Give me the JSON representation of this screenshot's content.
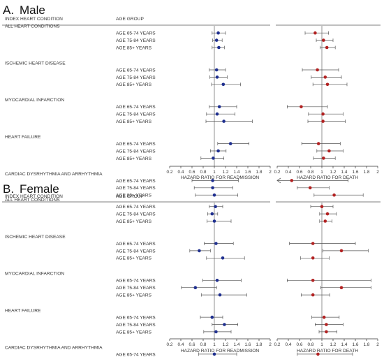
{
  "figure": {
    "panels": [
      {
        "letter": "A.",
        "title": "Male"
      },
      {
        "letter": "B.",
        "title": "Female"
      }
    ],
    "col_condition_header": "INDEX HEART CONDITION",
    "col_age_header": "AGE GROUP",
    "readmission_axis_label": "HAZARD RATIO FOR READMISSION",
    "death_axis_label": "HAZARD RATIO FOR DEATH",
    "ticks": [
      "0.2",
      "0.4",
      "0.6",
      "0.8",
      "1",
      "1.2",
      "1.4",
      "1.6",
      "1.8",
      "2"
    ],
    "conditions": [
      "ALL HEART CONDITIONS",
      "ISCHEMIC HEART DISEASE",
      "MYOCARDIAL INFARCTION",
      "HEART FAILURE",
      "CARDIAC DYSRHYTHMIA AND ARRHYTHMIA"
    ],
    "age_groups": [
      "AGE 65-74 YEARS",
      "AGE 75-84 YEARS",
      "AGE 85+ YEARS"
    ],
    "colors": {
      "readmission": "#1f2f8f",
      "death": "#b22222",
      "line": "#444444"
    }
  },
  "chart_data": [
    {
      "type": "scatter",
      "panel": "Male",
      "outcome": "readmission",
      "xlabel": "HAZARD RATIO FOR READMISSION",
      "xlim": [
        0.2,
        2
      ],
      "reference_line": 1,
      "rows": [
        {
          "condition": "ALL HEART CONDITIONS",
          "age": "AGE 65-74 YEARS",
          "hr": 1.07,
          "lo": 0.96,
          "hi": 1.2
        },
        {
          "condition": "ALL HEART CONDITIONS",
          "age": "AGE 75-84 YEARS",
          "hr": 1.04,
          "lo": 0.97,
          "hi": 1.14
        },
        {
          "condition": "ALL HEART CONDITIONS",
          "age": "AGE 85+ YEARS",
          "hr": 1.08,
          "lo": 0.96,
          "hi": 1.18
        },
        {
          "condition": "ISCHEMIC HEART DISEASE",
          "age": "AGE 65-74 YEARS",
          "hr": 1.04,
          "lo": 0.91,
          "hi": 1.2
        },
        {
          "condition": "ISCHEMIC HEART DISEASE",
          "age": "AGE 75-84 YEARS",
          "hr": 1.05,
          "lo": 0.92,
          "hi": 1.23
        },
        {
          "condition": "ISCHEMIC HEART DISEASE",
          "age": "AGE 85+ YEARS",
          "hr": 1.16,
          "lo": 0.95,
          "hi": 1.47
        },
        {
          "condition": "MYOCARDIAL INFARCTION",
          "age": "AGE 65-74 YEARS",
          "hr": 1.09,
          "lo": 0.91,
          "hi": 1.4
        },
        {
          "condition": "MYOCARDIAL INFARCTION",
          "age": "AGE 75-84 YEARS",
          "hr": 1.05,
          "lo": 0.86,
          "hi": 1.37
        },
        {
          "condition": "MYOCARDIAL INFARCTION",
          "age": "AGE 85+ YEARS",
          "hr": 1.17,
          "lo": 0.85,
          "hi": 1.68
        },
        {
          "condition": "HEART FAILURE",
          "age": "AGE 65-74 YEARS",
          "hr": 1.29,
          "lo": 1.06,
          "hi": 1.62
        },
        {
          "condition": "HEART FAILURE",
          "age": "AGE 75-84 YEARS",
          "hr": 1.07,
          "lo": 0.93,
          "hi": 1.21
        },
        {
          "condition": "HEART FAILURE",
          "age": "AGE 85+ YEARS",
          "hr": 0.98,
          "lo": 0.76,
          "hi": 1.17
        },
        {
          "condition": "CARDIAC DYSRHYTHMIA AND ARRHYTHMIA",
          "age": "AGE 65-74 YEARS",
          "hr": 0.97,
          "lo": 0.6,
          "hi": 1.43
        },
        {
          "condition": "CARDIAC DYSRHYTHMIA AND ARRHYTHMIA",
          "age": "AGE 75-84 YEARS",
          "hr": 0.97,
          "lo": 0.64,
          "hi": 1.33
        },
        {
          "condition": "CARDIAC DYSRHYTHMIA AND ARRHYTHMIA",
          "age": "AGE 85+ YEARS",
          "hr": 1.0,
          "lo": 0.66,
          "hi": 1.42
        }
      ]
    },
    {
      "type": "scatter",
      "panel": "Male",
      "outcome": "death",
      "xlabel": "HAZARD RATIO FOR DEATH",
      "xlim": [
        0.2,
        2
      ],
      "reference_line": 1,
      "rows": [
        {
          "condition": "ALL HEART CONDITIONS",
          "age": "AGE 65-74 YEARS",
          "hr": 0.88,
          "lo": 0.7,
          "hi": 1.12
        },
        {
          "condition": "ALL HEART CONDITIONS",
          "age": "AGE 75-84 YEARS",
          "hr": 1.03,
          "lo": 0.9,
          "hi": 1.2
        },
        {
          "condition": "ALL HEART CONDITIONS",
          "age": "AGE 85+ YEARS",
          "hr": 1.09,
          "lo": 0.97,
          "hi": 1.24
        },
        {
          "condition": "ISCHEMIC HEART DISEASE",
          "age": "AGE 65-74 YEARS",
          "hr": 0.92,
          "lo": 0.65,
          "hi": 1.3
        },
        {
          "condition": "ISCHEMIC HEART DISEASE",
          "age": "AGE 75-84 YEARS",
          "hr": 1.06,
          "lo": 0.81,
          "hi": 1.35
        },
        {
          "condition": "ISCHEMIC HEART DISEASE",
          "age": "AGE 85+ YEARS",
          "hr": 1.1,
          "lo": 0.84,
          "hi": 1.45
        },
        {
          "condition": "MYOCARDIAL INFARCTION",
          "age": "AGE 65-74 YEARS",
          "hr": 0.63,
          "lo": 0.38,
          "hi": 1.1
        },
        {
          "condition": "MYOCARDIAL INFARCTION",
          "age": "AGE 75-84 YEARS",
          "hr": 1.02,
          "lo": 0.76,
          "hi": 1.38
        },
        {
          "condition": "MYOCARDIAL INFARCTION",
          "age": "AGE 85+ YEARS",
          "hr": 1.02,
          "lo": 0.75,
          "hi": 1.42
        },
        {
          "condition": "HEART FAILURE",
          "age": "AGE 65-74 YEARS",
          "hr": 0.94,
          "lo": 0.64,
          "hi": 1.33
        },
        {
          "condition": "HEART FAILURE",
          "age": "AGE 75-84 YEARS",
          "hr": 1.13,
          "lo": 0.91,
          "hi": 1.38
        },
        {
          "condition": "HEART FAILURE",
          "age": "AGE 85+ YEARS",
          "hr": 1.03,
          "lo": 0.85,
          "hi": 1.24
        },
        {
          "condition": "CARDIAC DYSRHYTHMIA AND ARRHYTHMIA",
          "age": "AGE 65-74 YEARS",
          "hr": 0.46,
          "lo": 0.2,
          "hi": 1.47,
          "lo_truncated": true
        },
        {
          "condition": "CARDIAC DYSRHYTHMIA AND ARRHYTHMIA",
          "age": "AGE 75-84 YEARS",
          "hr": 0.79,
          "lo": 0.56,
          "hi": 1.13
        },
        {
          "condition": "CARDIAC DYSRHYTHMIA AND ARRHYTHMIA",
          "age": "AGE 85+ YEARS",
          "hr": 1.22,
          "lo": 0.86,
          "hi": 1.74
        }
      ]
    },
    {
      "type": "scatter",
      "panel": "Female",
      "outcome": "readmission",
      "xlabel": "HAZARD RATIO FOR READMISSION",
      "xlim": [
        0.2,
        2
      ],
      "reference_line": 1,
      "rows": [
        {
          "condition": "ALL HEART CONDITIONS",
          "age": "AGE 65-74 YEARS",
          "hr": 1.02,
          "lo": 0.91,
          "hi": 1.15
        },
        {
          "condition": "ALL HEART CONDITIONS",
          "age": "AGE 75-84 YEARS",
          "hr": 0.96,
          "lo": 0.88,
          "hi": 1.06
        },
        {
          "condition": "ALL HEART CONDITIONS",
          "age": "AGE 85+ YEARS",
          "hr": 1.0,
          "lo": 0.87,
          "hi": 1.3
        },
        {
          "condition": "ISCHEMIC HEART DISEASE",
          "age": "AGE 65-74 YEARS",
          "hr": 1.03,
          "lo": 0.82,
          "hi": 1.34
        },
        {
          "condition": "ISCHEMIC HEART DISEASE",
          "age": "AGE 75-84 YEARS",
          "hr": 0.73,
          "lo": 0.56,
          "hi": 0.93
        },
        {
          "condition": "ISCHEMIC HEART DISEASE",
          "age": "AGE 85+ YEARS",
          "hr": 1.15,
          "lo": 0.86,
          "hi": 1.54
        },
        {
          "condition": "MYOCARDIAL INFARCTION",
          "age": "AGE 65-74 YEARS",
          "hr": 1.05,
          "lo": 0.79,
          "hi": 1.48
        },
        {
          "condition": "MYOCARDIAL INFARCTION",
          "age": "AGE 75-84 YEARS",
          "hr": 0.66,
          "lo": 0.41,
          "hi": 1.04
        },
        {
          "condition": "MYOCARDIAL INFARCTION",
          "age": "AGE 85+ YEARS",
          "hr": 1.1,
          "lo": 0.77,
          "hi": 1.58
        },
        {
          "condition": "HEART FAILURE",
          "age": "AGE 65-74 YEARS",
          "hr": 0.96,
          "lo": 0.75,
          "hi": 1.15
        },
        {
          "condition": "HEART FAILURE",
          "age": "AGE 75-84 YEARS",
          "hr": 1.18,
          "lo": 0.96,
          "hi": 1.42
        },
        {
          "condition": "HEART FAILURE",
          "age": "AGE 85+ YEARS",
          "hr": 1.03,
          "lo": 0.81,
          "hi": 1.3
        },
        {
          "condition": "CARDIAC DYSRHYTHMIA AND ARRHYTHMIA",
          "age": "AGE 65-74 YEARS",
          "hr": 1.0,
          "lo": 0.72,
          "hi": 1.4
        },
        {
          "condition": "CARDIAC DYSRHYTHMIA AND ARRHYTHMIA",
          "age": "AGE 75-84 YEARS",
          "hr": 0.66,
          "lo": 0.37,
          "hi": 1.08
        },
        {
          "condition": "CARDIAC DYSRHYTHMIA AND ARRHYTHMIA",
          "age": "AGE 85+ YEARS",
          "hr": 0.56,
          "lo": 0.26,
          "hi": 1.04
        }
      ]
    },
    {
      "type": "scatter",
      "panel": "Female",
      "outcome": "death",
      "xlabel": "HAZARD RATIO FOR DEATH",
      "xlim": [
        0.2,
        2
      ],
      "reference_line": 1,
      "rows": [
        {
          "condition": "ALL HEART CONDITIONS",
          "age": "AGE 65-74 YEARS",
          "hr": 1.0,
          "lo": 0.8,
          "hi": 1.2
        },
        {
          "condition": "ALL HEART CONDITIONS",
          "age": "AGE 75-84 YEARS",
          "hr": 1.1,
          "lo": 0.96,
          "hi": 1.26
        },
        {
          "condition": "ALL HEART CONDITIONS",
          "age": "AGE 85+ YEARS",
          "hr": 1.06,
          "lo": 0.96,
          "hi": 1.18
        },
        {
          "condition": "ISCHEMIC HEART DISEASE",
          "age": "AGE 65-74 YEARS",
          "hr": 0.84,
          "lo": 0.42,
          "hi": 1.6
        },
        {
          "condition": "ISCHEMIC HEART DISEASE",
          "age": "AGE 75-84 YEARS",
          "hr": 1.35,
          "lo": 1.02,
          "hi": 1.83
        },
        {
          "condition": "ISCHEMIC HEART DISEASE",
          "age": "AGE 85+ YEARS",
          "hr": 0.84,
          "lo": 0.62,
          "hi": 1.13
        },
        {
          "condition": "MYOCARDIAL INFARCTION",
          "age": "AGE 65-74 YEARS",
          "hr": 0.84,
          "lo": 0.38,
          "hi": 1.88
        },
        {
          "condition": "MYOCARDIAL INFARCTION",
          "age": "AGE 75-84 YEARS",
          "hr": 1.35,
          "lo": 0.98,
          "hi": 1.88
        },
        {
          "condition": "MYOCARDIAL INFARCTION",
          "age": "AGE 85+ YEARS",
          "hr": 0.84,
          "lo": 0.63,
          "hi": 1.14
        },
        {
          "condition": "HEART FAILURE",
          "age": "AGE 65-74 YEARS",
          "hr": 1.04,
          "lo": 0.82,
          "hi": 1.31
        },
        {
          "condition": "HEART FAILURE",
          "age": "AGE 75-84 YEARS",
          "hr": 1.08,
          "lo": 0.88,
          "hi": 1.38
        },
        {
          "condition": "HEART FAILURE",
          "age": "AGE 85+ YEARS",
          "hr": 1.08,
          "lo": 0.95,
          "hi": 1.27
        },
        {
          "condition": "CARDIAC DYSRHYTHMIA AND ARRHYTHMIA",
          "age": "AGE 65-74 YEARS",
          "hr": 0.93,
          "lo": 0.56,
          "hi": 1.55
        },
        {
          "condition": "CARDIAC DYSRHYTHMIA AND ARRHYTHMIA",
          "age": "AGE 75-84 YEARS",
          "hr": 0.82,
          "lo": 0.49,
          "hi": 1.42
        },
        {
          "condition": "CARDIAC DYSRHYTHMIA AND ARRHYTHMIA",
          "age": "AGE 85+ YEARS",
          "hr": 0.9,
          "lo": 0.56,
          "hi": 1.36
        }
      ]
    }
  ]
}
